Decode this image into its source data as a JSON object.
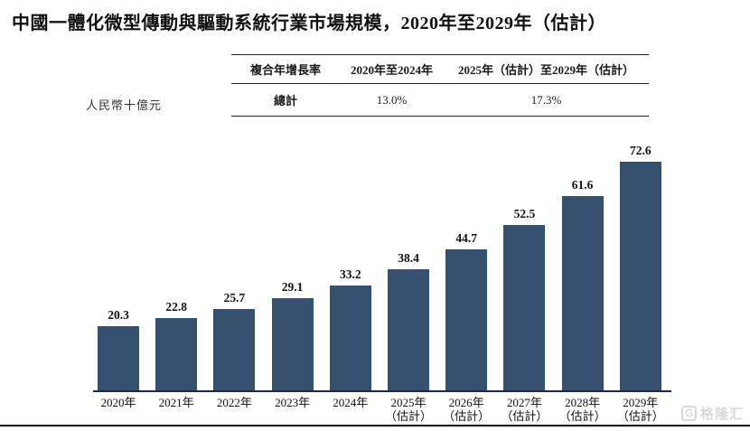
{
  "title": "中國一體化微型傳動與驅動系統行業市場規模，2020年至2029年（估計）",
  "unit_label": "人民幣十億元",
  "cagr_table": {
    "header": [
      "複合年增長率",
      "2020年至2024年",
      "2025年（估計）至2029年（估計）"
    ],
    "rows": [
      [
        "總計",
        "13.0%",
        "17.3%"
      ]
    ]
  },
  "chart_data": {
    "type": "bar",
    "title": "中國一體化微型傳動與驅動系統行業市場規模，2020年至2029年（估計）",
    "categories": [
      "2020年",
      "2021年",
      "2022年",
      "2023年",
      "2024年",
      "2025年\n（估計）",
      "2026年\n（估計）",
      "2027年\n（估計）",
      "2028年\n（估計）",
      "2029年\n（估計）"
    ],
    "values": [
      20.3,
      22.8,
      25.7,
      29.1,
      33.2,
      38.4,
      44.7,
      52.5,
      61.6,
      72.6
    ],
    "xlabel": "",
    "ylabel": "人民幣十億元",
    "ylim": [
      0,
      80
    ],
    "grid": false,
    "legend_position": "none",
    "data_labels": true,
    "bar_color": "#36506f",
    "axis_color": "#1f2a3c"
  },
  "watermark": {
    "logo": "G",
    "text": "格隆汇",
    "color": "#d9d9d9"
  }
}
